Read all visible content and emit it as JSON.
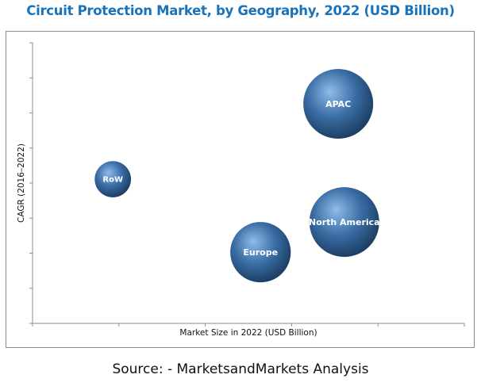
{
  "chart_data": {
    "type": "scatter",
    "subtype": "bubble",
    "title": "Circuit Protection Market, by Geography, 2022 (USD Billion)",
    "xlabel": "Market Size in 2022 (USD Billion)",
    "ylabel": "CAGR (2016–2022)",
    "xlim": [
      0,
      5
    ],
    "ylim": [
      0,
      8
    ],
    "x_ticks": [
      0,
      1,
      2,
      3,
      4,
      5
    ],
    "y_ticks": [
      0,
      1,
      2,
      3,
      4,
      5,
      6,
      7,
      8
    ],
    "tick_labels_shown": false,
    "grid": false,
    "legend": "none",
    "series": [
      {
        "name": "RoW",
        "x": 0.93,
        "y": 4.11,
        "size": 0.27
      },
      {
        "name": "Europe",
        "x": 2.64,
        "y": 2.03,
        "size": 0.75
      },
      {
        "name": "APAC",
        "x": 3.54,
        "y": 6.26,
        "size": 1.0
      },
      {
        "name": "North America",
        "x": 3.61,
        "y": 2.89,
        "size": 1.0
      }
    ],
    "bubble_color": "#3a6ea5",
    "bubble_highlight": "#8fbcea",
    "bubble_shadow": "#1d3f66"
  },
  "source": "Source: - MarketsandMarkets Analysis",
  "colors": {
    "title": "#1a73ba",
    "axis": "#8c8c8c"
  }
}
